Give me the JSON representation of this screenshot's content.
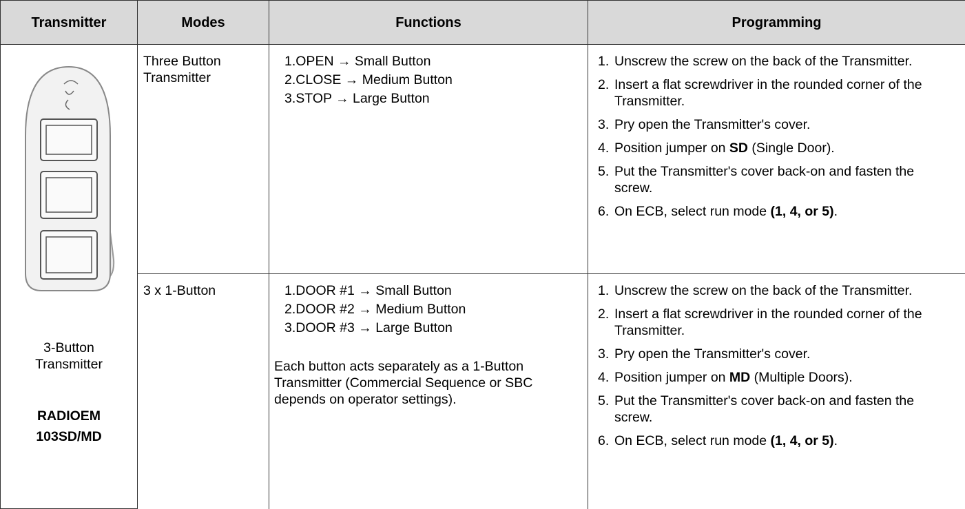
{
  "header": [
    "Transmitter",
    "Modes",
    "Functions",
    "Programming"
  ],
  "transmitter": {
    "caption": "3-Button Transmitter",
    "model": "RADIOEM 103SD/MD"
  },
  "rows": [
    {
      "mode": "Three Button Transmitter",
      "functions": [
        {
          "num": "1.",
          "text": "OPEN → Small Button"
        },
        {
          "num": "2.",
          "text": "CLOSE → Medium Button"
        },
        {
          "num": "3.",
          "text": "STOP → Large Button"
        }
      ],
      "programming": [
        {
          "num": "1.",
          "runs": [
            {
              "text": "Unscrew the screw on the back of the Transmitter."
            }
          ]
        },
        {
          "num": "2.",
          "runs": [
            {
              "text": "Insert a flat screwdriver in the rounded corner of the Transmitter."
            }
          ]
        },
        {
          "num": "3.",
          "runs": [
            {
              "text": "Pry open the Transmitter's cover."
            }
          ]
        },
        {
          "num": "4.",
          "runs": [
            {
              "text": "Position jumper on "
            },
            {
              "text": "SD",
              "bold": true
            },
            {
              "text": " (Single Door)."
            }
          ]
        },
        {
          "num": "5.",
          "runs": [
            {
              "text": "Put the Transmitter's cover back-on and fasten the screw."
            }
          ]
        },
        {
          "num": "6.",
          "runs": [
            {
              "text": "On ECB, select run mode "
            },
            {
              "text": "(1, 4, or 5)",
              "bold": true
            },
            {
              "text": "."
            }
          ]
        }
      ]
    },
    {
      "mode": "3 x 1-Button",
      "functions": [
        {
          "num": "1.",
          "text": "DOOR #1 → Small Button"
        },
        {
          "num": "2.",
          "text": "DOOR #2 → Medium Button"
        },
        {
          "num": "3.",
          "text": "DOOR #3 → Large Button"
        }
      ],
      "note": "Each button acts separately as a 1-Button Transmitter (Commercial Sequence or SBC depends on operator settings).",
      "programming": [
        {
          "num": "1.",
          "runs": [
            {
              "text": "Unscrew the screw on the back of the Transmitter."
            }
          ]
        },
        {
          "num": "2.",
          "runs": [
            {
              "text": "Insert a flat screwdriver in the rounded corner of the Transmitter."
            }
          ]
        },
        {
          "num": "3.",
          "runs": [
            {
              "text": "Pry open the Transmitter's cover."
            }
          ]
        },
        {
          "num": "4.",
          "runs": [
            {
              "text": "Position jumper on "
            },
            {
              "text": "MD",
              "bold": true
            },
            {
              "text": " (Multiple Doors)."
            }
          ]
        },
        {
          "num": "5.",
          "runs": [
            {
              "text": "Put the Transmitter's cover back-on and fasten the screw."
            }
          ]
        },
        {
          "num": "6.",
          "runs": [
            {
              "text": "On ECB, select run mode "
            },
            {
              "text": "(1, 4, or 5)",
              "bold": true
            },
            {
              "text": "."
            }
          ]
        }
      ]
    }
  ]
}
